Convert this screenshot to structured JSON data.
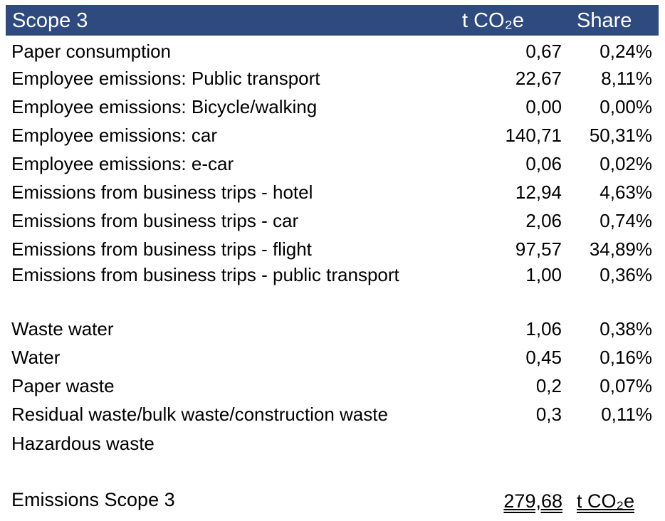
{
  "header": {
    "title": "Scope 3",
    "unit": "t CO₂e",
    "share": "Share",
    "bg_color": "#2E4A7E"
  },
  "rows": [
    {
      "label": "Paper consumption",
      "value": "0,67",
      "share": "0,24%"
    },
    {
      "label": "Employee emissions: Public transport",
      "value": "22,67",
      "share": "8,11%"
    },
    {
      "label": "Employee emissions: Bicycle/walking",
      "value": "0,00",
      "share": "0,00%"
    },
    {
      "label": "Employee emissions: car",
      "value": "140,71",
      "share": "50,31%"
    },
    {
      "label": "Employee emissions: e-car",
      "value": "0,06",
      "share": "0,02%"
    },
    {
      "label": "Emissions from business trips - hotel",
      "value": "12,94",
      "share": "4,63%"
    },
    {
      "label": "Emissions from business trips - car",
      "value": "2,06",
      "share": "0,74%"
    },
    {
      "label": "Emissions from business trips - flight",
      "value": "97,57",
      "share": "34,89%"
    },
    {
      "label": "Emissions from business trips - public transport",
      "value": "1,00",
      "share": "0,36%"
    },
    {
      "label": "Waste water",
      "value": "1,06",
      "share": "0,38%"
    },
    {
      "label": "Water",
      "value": "0,45",
      "share": "0,16%"
    },
    {
      "label": "Paper waste",
      "value": "0,2",
      "share": "0,07%"
    },
    {
      "label": "Residual waste/bulk waste/construction waste",
      "value": "0,3",
      "share": "0,11%"
    },
    {
      "label": "Hazardous waste",
      "value": "",
      "share": ""
    }
  ],
  "total": {
    "label": "Emissions Scope 3",
    "value": "279,68",
    "unit": "t CO₂e"
  }
}
